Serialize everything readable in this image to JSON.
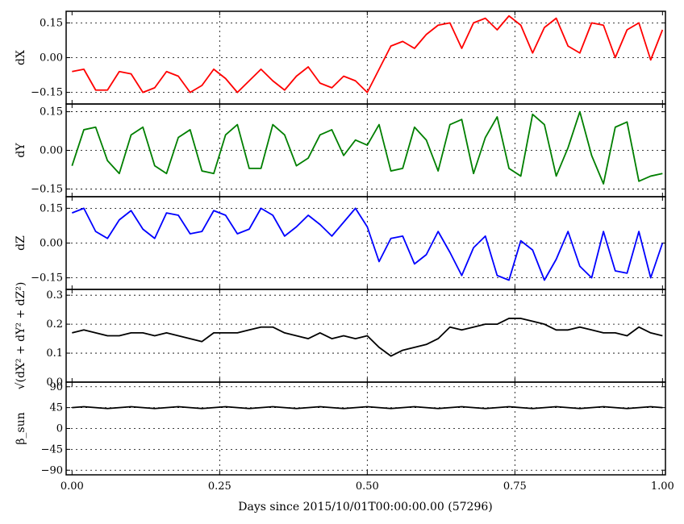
{
  "chart_data": {
    "type": "line",
    "xlabel": "Days since 2015/10/01T00:00:00.00 (57296)",
    "xlim": [
      -0.01,
      1.005
    ],
    "xticks": [
      "0.00",
      "0.25",
      "0.50",
      "0.75",
      "1.00"
    ],
    "xtick_values": [
      0.0,
      0.25,
      0.5,
      0.75,
      1.0
    ],
    "panels": [
      {
        "id": "dx",
        "ylabel": "dX",
        "color": "#ff0000",
        "ylim": [
          -0.2,
          0.2
        ],
        "yticks": [
          "0.15",
          "0.00",
          "−0.15"
        ],
        "ytick_values": [
          0.15,
          0.0,
          -0.15
        ],
        "series": {
          "x": [
            0.0,
            0.02,
            0.04,
            0.06,
            0.08,
            0.1,
            0.12,
            0.14,
            0.16,
            0.18,
            0.2,
            0.22,
            0.24,
            0.26,
            0.28,
            0.3,
            0.32,
            0.34,
            0.36,
            0.38,
            0.4,
            0.42,
            0.44,
            0.46,
            0.48,
            0.5,
            0.52,
            0.54,
            0.56,
            0.58,
            0.6,
            0.62,
            0.64,
            0.66,
            0.68,
            0.7,
            0.72,
            0.74,
            0.76,
            0.78,
            0.8,
            0.82,
            0.84,
            0.86,
            0.88,
            0.9,
            0.92,
            0.94,
            0.96,
            0.98,
            1.0
          ],
          "y": [
            -0.06,
            -0.05,
            -0.14,
            -0.14,
            -0.06,
            -0.07,
            -0.15,
            -0.13,
            -0.06,
            -0.08,
            -0.15,
            -0.12,
            -0.05,
            -0.09,
            -0.15,
            -0.1,
            -0.05,
            -0.1,
            -0.14,
            -0.08,
            -0.04,
            -0.11,
            -0.13,
            -0.08,
            -0.1,
            -0.15,
            -0.05,
            0.05,
            0.07,
            0.04,
            0.1,
            0.14,
            0.15,
            0.04,
            0.15,
            0.17,
            0.12,
            0.18,
            0.14,
            0.02,
            0.13,
            0.17,
            0.05,
            0.02,
            0.15,
            0.14,
            0.0,
            0.12,
            0.15,
            -0.01,
            0.12
          ]
        }
      },
      {
        "id": "dy",
        "ylabel": "dY",
        "color": "#007f00",
        "ylim": [
          -0.18,
          0.18
        ],
        "yticks": [
          "0.15",
          "0.00",
          "−0.15"
        ],
        "ytick_values": [
          0.15,
          0.0,
          -0.15
        ],
        "series": {
          "x": [
            0.0,
            0.02,
            0.04,
            0.06,
            0.08,
            0.1,
            0.12,
            0.14,
            0.16,
            0.18,
            0.2,
            0.22,
            0.24,
            0.26,
            0.28,
            0.3,
            0.32,
            0.34,
            0.36,
            0.38,
            0.4,
            0.42,
            0.44,
            0.46,
            0.48,
            0.5,
            0.52,
            0.54,
            0.56,
            0.58,
            0.6,
            0.62,
            0.64,
            0.66,
            0.68,
            0.7,
            0.72,
            0.74,
            0.76,
            0.78,
            0.8,
            0.82,
            0.84,
            0.86,
            0.88,
            0.9,
            0.92,
            0.94,
            0.96,
            0.98,
            1.0
          ],
          "y": [
            -0.06,
            0.08,
            0.09,
            -0.04,
            -0.09,
            0.06,
            0.09,
            -0.06,
            -0.09,
            0.05,
            0.08,
            -0.08,
            -0.09,
            0.06,
            0.1,
            -0.07,
            -0.07,
            0.1,
            0.06,
            -0.06,
            -0.03,
            0.06,
            0.08,
            -0.02,
            0.04,
            0.02,
            0.1,
            -0.08,
            -0.07,
            0.09,
            0.04,
            -0.08,
            0.1,
            0.12,
            -0.09,
            0.05,
            0.13,
            -0.07,
            -0.1,
            0.14,
            0.1,
            -0.1,
            0.01,
            0.15,
            -0.02,
            -0.13,
            0.09,
            0.11,
            -0.12,
            -0.1,
            -0.09
          ]
        }
      },
      {
        "id": "dz",
        "ylabel": "dZ",
        "color": "#0000ff",
        "ylim": [
          -0.2,
          0.2
        ],
        "yticks": [
          "0.15",
          "0.00",
          "−0.15"
        ],
        "ytick_values": [
          0.15,
          0.0,
          -0.15
        ],
        "series": {
          "x": [
            0.0,
            0.02,
            0.04,
            0.06,
            0.08,
            0.1,
            0.12,
            0.14,
            0.16,
            0.18,
            0.2,
            0.22,
            0.24,
            0.26,
            0.28,
            0.3,
            0.32,
            0.34,
            0.36,
            0.38,
            0.4,
            0.42,
            0.44,
            0.46,
            0.48,
            0.5,
            0.52,
            0.54,
            0.56,
            0.58,
            0.6,
            0.62,
            0.64,
            0.66,
            0.68,
            0.7,
            0.72,
            0.74,
            0.76,
            0.78,
            0.8,
            0.82,
            0.84,
            0.86,
            0.88,
            0.9,
            0.92,
            0.94,
            0.96,
            0.98,
            1.0
          ],
          "y": [
            0.13,
            0.15,
            0.05,
            0.02,
            0.1,
            0.14,
            0.06,
            0.02,
            0.13,
            0.12,
            0.04,
            0.05,
            0.14,
            0.12,
            0.04,
            0.06,
            0.15,
            0.12,
            0.03,
            0.07,
            0.12,
            0.08,
            0.03,
            0.09,
            0.15,
            0.07,
            -0.08,
            0.02,
            0.03,
            -0.09,
            -0.05,
            0.05,
            -0.04,
            -0.14,
            -0.02,
            0.03,
            -0.14,
            -0.16,
            0.01,
            -0.03,
            -0.16,
            -0.07,
            0.05,
            -0.1,
            -0.15,
            0.05,
            -0.12,
            -0.13,
            0.05,
            -0.15,
            0.0
          ]
        }
      },
      {
        "id": "norm",
        "ylabel": "√(dX² + dY² + dZ²)",
        "color": "#000000",
        "ylim": [
          0.0,
          0.32
        ],
        "yticks": [
          "0.3",
          "0.2",
          "0.1",
          "0.0"
        ],
        "ytick_values": [
          0.3,
          0.2,
          0.1,
          0.0
        ],
        "series": {
          "x": [
            0.0,
            0.02,
            0.04,
            0.06,
            0.08,
            0.1,
            0.12,
            0.14,
            0.16,
            0.18,
            0.2,
            0.22,
            0.24,
            0.26,
            0.28,
            0.3,
            0.32,
            0.34,
            0.36,
            0.38,
            0.4,
            0.42,
            0.44,
            0.46,
            0.48,
            0.5,
            0.52,
            0.54,
            0.56,
            0.58,
            0.6,
            0.62,
            0.64,
            0.66,
            0.68,
            0.7,
            0.72,
            0.74,
            0.76,
            0.78,
            0.8,
            0.82,
            0.84,
            0.86,
            0.88,
            0.9,
            0.92,
            0.94,
            0.96,
            0.98,
            1.0
          ],
          "y": [
            0.17,
            0.18,
            0.17,
            0.16,
            0.16,
            0.17,
            0.17,
            0.16,
            0.17,
            0.16,
            0.15,
            0.14,
            0.17,
            0.17,
            0.17,
            0.18,
            0.19,
            0.19,
            0.17,
            0.16,
            0.15,
            0.17,
            0.15,
            0.16,
            0.15,
            0.16,
            0.12,
            0.09,
            0.11,
            0.12,
            0.13,
            0.15,
            0.19,
            0.18,
            0.19,
            0.2,
            0.2,
            0.22,
            0.22,
            0.21,
            0.2,
            0.18,
            0.18,
            0.19,
            0.18,
            0.17,
            0.17,
            0.16,
            0.19,
            0.17,
            0.16
          ]
        }
      },
      {
        "id": "beta",
        "ylabel": "β_sun",
        "color": "#000000",
        "ylim": [
          -100,
          100
        ],
        "yticks": [
          "90",
          "45",
          "0",
          "−45",
          "−90"
        ],
        "ytick_values": [
          90,
          45,
          0,
          -45,
          -90
        ],
        "series": {
          "x": [
            0.0,
            0.02,
            0.04,
            0.06,
            0.08,
            0.1,
            0.12,
            0.14,
            0.16,
            0.18,
            0.2,
            0.22,
            0.24,
            0.26,
            0.28,
            0.3,
            0.32,
            0.34,
            0.36,
            0.38,
            0.4,
            0.42,
            0.44,
            0.46,
            0.48,
            0.5,
            0.52,
            0.54,
            0.56,
            0.58,
            0.6,
            0.62,
            0.64,
            0.66,
            0.68,
            0.7,
            0.72,
            0.74,
            0.76,
            0.78,
            0.8,
            0.82,
            0.84,
            0.86,
            0.88,
            0.9,
            0.92,
            0.94,
            0.96,
            0.98,
            1.0
          ],
          "y": [
            45,
            47,
            45,
            43,
            45,
            47,
            45,
            43,
            45,
            47,
            45,
            43,
            45,
            47,
            45,
            43,
            45,
            47,
            45,
            43,
            45,
            47,
            45,
            43,
            45,
            47,
            45,
            43,
            45,
            47,
            45,
            43,
            45,
            47,
            45,
            43,
            45,
            47,
            45,
            43,
            45,
            47,
            45,
            43,
            45,
            47,
            45,
            43,
            45,
            47,
            45
          ]
        }
      }
    ]
  }
}
